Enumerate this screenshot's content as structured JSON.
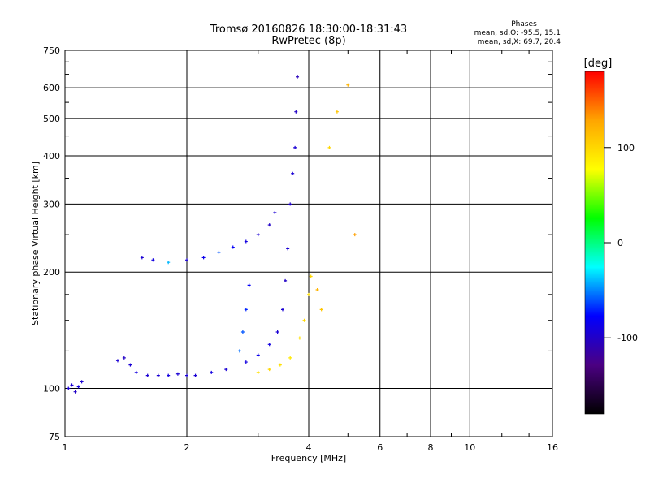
{
  "chart_data": {
    "type": "scatter",
    "title": "Tromsø 20160826 18:30:00-18:31:43",
    "subtitle": "RwPretec (8p)",
    "xlabel": "Frequency [MHz]",
    "ylabel": "Stationary phase Virtual Height [km]",
    "xscale": "log",
    "yscale": "log",
    "xlim": [
      1,
      16
    ],
    "ylim": [
      75,
      750
    ],
    "xticks": [
      1,
      2,
      4,
      6,
      8,
      10,
      16
    ],
    "yticks": [
      75,
      100,
      200,
      300,
      400,
      500,
      600,
      750
    ],
    "grid": true,
    "info_box": {
      "title": "Phases",
      "line1": "mean, sd,O: -95.5, 15.1",
      "line2": "mean, sd,X:  69.7, 20.4"
    },
    "colorbar": {
      "label": "[deg]",
      "ticks": [
        100,
        0,
        -100
      ],
      "range": [
        -180,
        180
      ],
      "stops": [
        "#000000",
        "#4b0082",
        "#0000ff",
        "#00ffff",
        "#00ff00",
        "#ffff00",
        "#ffa500",
        "#ff0000"
      ]
    },
    "series": [
      {
        "values": [
          {
            "x": 1.02,
            "y": 100,
            "phase": -95
          },
          {
            "x": 1.04,
            "y": 102,
            "phase": -95
          },
          {
            "x": 1.06,
            "y": 98,
            "phase": -100
          },
          {
            "x": 1.08,
            "y": 101,
            "phase": -90
          },
          {
            "x": 1.1,
            "y": 104,
            "phase": -95
          },
          {
            "x": 1.35,
            "y": 118,
            "phase": -95
          },
          {
            "x": 1.4,
            "y": 120,
            "phase": -100
          },
          {
            "x": 1.45,
            "y": 115,
            "phase": -95
          },
          {
            "x": 1.5,
            "y": 110,
            "phase": -90
          },
          {
            "x": 1.6,
            "y": 108,
            "phase": -95
          },
          {
            "x": 1.7,
            "y": 108,
            "phase": -95
          },
          {
            "x": 1.8,
            "y": 108,
            "phase": -90
          },
          {
            "x": 1.9,
            "y": 109,
            "phase": -95
          },
          {
            "x": 2.0,
            "y": 108,
            "phase": -95
          },
          {
            "x": 2.1,
            "y": 108,
            "phase": -95
          },
          {
            "x": 2.3,
            "y": 110,
            "phase": -90
          },
          {
            "x": 2.5,
            "y": 112,
            "phase": -95
          },
          {
            "x": 2.8,
            "y": 117,
            "phase": -90
          },
          {
            "x": 3.0,
            "y": 122,
            "phase": -85
          },
          {
            "x": 3.2,
            "y": 130,
            "phase": -90
          },
          {
            "x": 3.35,
            "y": 140,
            "phase": -95
          },
          {
            "x": 3.45,
            "y": 160,
            "phase": -95
          },
          {
            "x": 3.5,
            "y": 190,
            "phase": -100
          },
          {
            "x": 3.55,
            "y": 230,
            "phase": -95
          },
          {
            "x": 3.6,
            "y": 300,
            "phase": -100
          },
          {
            "x": 3.65,
            "y": 360,
            "phase": -95
          },
          {
            "x": 3.7,
            "y": 420,
            "phase": -95
          },
          {
            "x": 3.72,
            "y": 520,
            "phase": -100
          },
          {
            "x": 3.75,
            "y": 640,
            "phase": -105
          },
          {
            "x": 1.55,
            "y": 218,
            "phase": -95
          },
          {
            "x": 1.65,
            "y": 215,
            "phase": -90
          },
          {
            "x": 1.8,
            "y": 212,
            "phase": -40
          },
          {
            "x": 2.0,
            "y": 215,
            "phase": -95
          },
          {
            "x": 2.2,
            "y": 218,
            "phase": -85
          },
          {
            "x": 2.4,
            "y": 225,
            "phase": -60
          },
          {
            "x": 2.6,
            "y": 232,
            "phase": -80
          },
          {
            "x": 2.8,
            "y": 240,
            "phase": -90
          },
          {
            "x": 3.0,
            "y": 250,
            "phase": -95
          },
          {
            "x": 3.2,
            "y": 265,
            "phase": -100
          },
          {
            "x": 3.3,
            "y": 285,
            "phase": -95
          }
        ]
      },
      {
        "values": [
          {
            "x": 2.7,
            "y": 125,
            "phase": -55
          },
          {
            "x": 2.75,
            "y": 140,
            "phase": -60
          },
          {
            "x": 2.8,
            "y": 160,
            "phase": -70
          },
          {
            "x": 2.85,
            "y": 185,
            "phase": -80
          },
          {
            "x": 3.0,
            "y": 110,
            "phase": 95
          },
          {
            "x": 3.2,
            "y": 112,
            "phase": 100
          },
          {
            "x": 3.4,
            "y": 115,
            "phase": 95
          },
          {
            "x": 3.6,
            "y": 120,
            "phase": 90
          },
          {
            "x": 3.8,
            "y": 135,
            "phase": 95
          },
          {
            "x": 3.9,
            "y": 150,
            "phase": 100
          },
          {
            "x": 4.0,
            "y": 175,
            "phase": 95
          },
          {
            "x": 4.05,
            "y": 195,
            "phase": 100
          },
          {
            "x": 4.2,
            "y": 180,
            "phase": 120
          },
          {
            "x": 4.3,
            "y": 160,
            "phase": 110
          },
          {
            "x": 4.5,
            "y": 420,
            "phase": 100
          },
          {
            "x": 4.7,
            "y": 520,
            "phase": 110
          },
          {
            "x": 5.0,
            "y": 610,
            "phase": 120
          },
          {
            "x": 5.2,
            "y": 250,
            "phase": 130
          }
        ]
      }
    ]
  }
}
